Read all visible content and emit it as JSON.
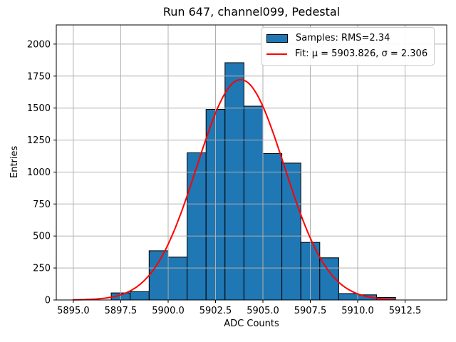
{
  "chart_data": {
    "type": "bar",
    "subtype": "histogram",
    "title": "Run 647, channel099, Pedestal",
    "xlabel": "ADC Counts",
    "ylabel": "Entries",
    "bin_start": 5897,
    "bin_width": 1,
    "bin_edges": [
      5897,
      5898,
      5899,
      5900,
      5901,
      5902,
      5903,
      5904,
      5905,
      5906,
      5907,
      5908,
      5909,
      5910,
      5911,
      5912
    ],
    "values": [
      55,
      65,
      385,
      335,
      1150,
      1490,
      1855,
      1515,
      1145,
      1070,
      450,
      330,
      50,
      40,
      20
    ],
    "xlim": [
      5894.1,
      5914.7
    ],
    "ylim": [
      0,
      2150
    ],
    "grid": true,
    "xticks": {
      "values": [
        5895.0,
        5897.5,
        5900.0,
        5902.5,
        5905.0,
        5907.5,
        5910.0,
        5912.5
      ],
      "labels": [
        "5895.0",
        "5897.5",
        "5900.0",
        "5902.5",
        "5905.0",
        "5907.5",
        "5910.0",
        "5912.5"
      ]
    },
    "yticks": {
      "values": [
        0,
        250,
        500,
        750,
        1000,
        1250,
        1500,
        1750,
        2000
      ],
      "labels": [
        "0",
        "250",
        "500",
        "750",
        "1000",
        "1250",
        "1500",
        "1750",
        "2000"
      ]
    },
    "fit": {
      "mu": 5903.826,
      "sigma": 2.306,
      "amplitude": 1723,
      "x_start": 5895.0,
      "x_end": 5912.0
    },
    "legend": {
      "position": "upper right",
      "entries": [
        {
          "label": "Samples: RMS=2.34",
          "marker": "patch",
          "color": "#1f77b4"
        },
        {
          "label": "Fit: μ = 5903.826, σ = 2.306",
          "marker": "line",
          "color": "#ff0000"
        }
      ]
    },
    "colors": {
      "bar_fill": "#1f77b4",
      "bar_edge": "#000000",
      "fit_line": "#ff0000",
      "grid": "#b0b0b0",
      "spine": "#000000",
      "text": "#000000"
    }
  }
}
